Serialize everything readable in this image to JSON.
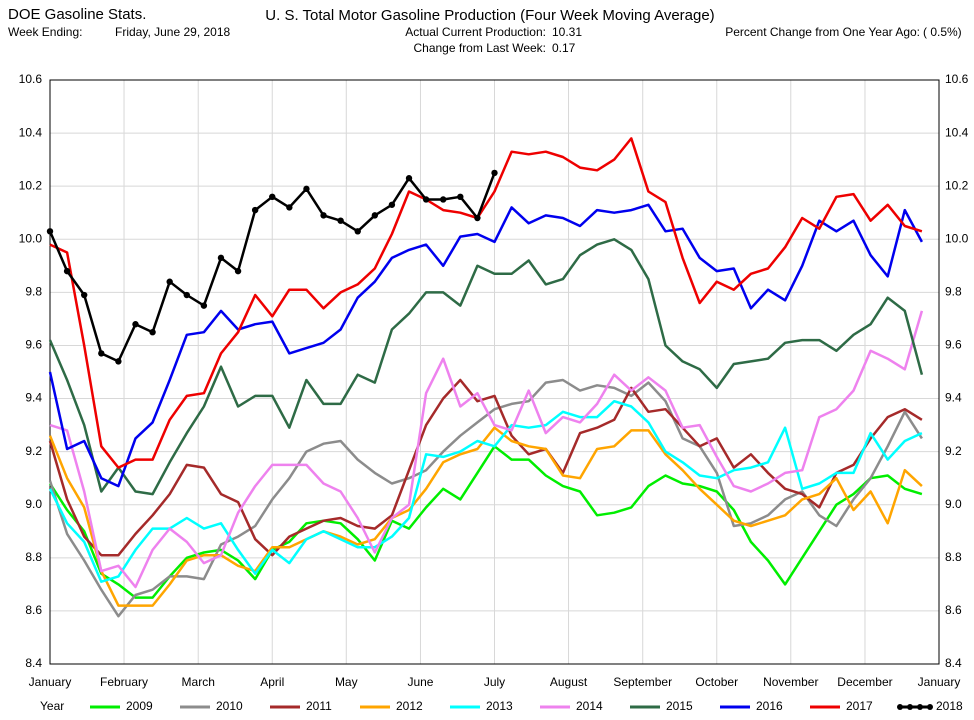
{
  "header": {
    "source": "DOE Gasoline Stats.",
    "week_label": "Week Ending:",
    "week_value": "Friday, June 29, 2018",
    "current_label": "Actual Current Production:",
    "current_value": "10.31",
    "change_label": "Change from Last Week:",
    "change_value": "0.17",
    "pct_label": "Percent Change from One Year Ago:",
    "pct_value": "( 0.5%)"
  },
  "chart_data": {
    "type": "line",
    "title": "U. S. Total Motor Gasoline Production (Four Week Moving Average)",
    "legend_title": "Year",
    "grid": true,
    "legend": "bottom",
    "x": [
      0,
      1,
      2,
      3,
      4,
      5,
      6,
      7,
      8,
      9,
      10,
      11,
      12,
      13,
      14,
      15,
      16,
      17,
      18,
      19,
      20,
      21,
      22,
      23,
      24,
      25,
      26,
      27,
      28,
      29,
      30,
      31,
      32,
      33,
      34,
      35,
      36,
      37,
      38,
      39,
      40,
      41,
      42,
      43,
      44,
      45,
      46,
      47,
      48,
      49,
      50,
      51
    ],
    "xlim": [
      0,
      52
    ],
    "xticks": [
      {
        "value": 0,
        "label": "January"
      },
      {
        "value": 4.33,
        "label": "February"
      },
      {
        "value": 8.67,
        "label": "March"
      },
      {
        "value": 13,
        "label": "April"
      },
      {
        "value": 17.33,
        "label": "May"
      },
      {
        "value": 21.67,
        "label": "June"
      },
      {
        "value": 26,
        "label": "July"
      },
      {
        "value": 30.33,
        "label": "August"
      },
      {
        "value": 34.67,
        "label": "September"
      },
      {
        "value": 39,
        "label": "October"
      },
      {
        "value": 43.33,
        "label": "November"
      },
      {
        "value": 47.67,
        "label": "December"
      },
      {
        "value": 52,
        "label": "January"
      }
    ],
    "ylim": [
      8.4,
      10.6
    ],
    "yticks": [
      8.4,
      8.6,
      8.8,
      {
        "value": 9.0,
        "label": "9.0"
      },
      9.2,
      9.4,
      9.6,
      9.8,
      {
        "value": 10.0,
        "label": "10.0"
      },
      10.2,
      10.4,
      10.6
    ],
    "series": [
      {
        "name": "2009",
        "color": "#00ee00",
        "values": [
          9.08,
          8.98,
          8.9,
          8.74,
          8.7,
          8.65,
          8.65,
          8.73,
          8.8,
          8.82,
          8.83,
          8.79,
          8.72,
          8.83,
          8.86,
          8.93,
          8.94,
          8.93,
          8.87,
          8.79,
          8.94,
          8.91,
          8.99,
          9.06,
          9.02,
          9.12,
          9.22,
          9.17,
          9.17,
          9.11,
          9.07,
          9.05,
          8.96,
          8.97,
          8.99,
          9.07,
          9.11,
          9.08,
          9.07,
          9.05,
          8.98,
          8.86,
          8.79,
          8.7,
          8.8,
          8.9,
          9.0,
          9.04,
          9.1,
          9.11,
          9.06,
          9.04
        ]
      },
      {
        "name": "2010",
        "color": "#8c8c8c",
        "values": [
          9.09,
          8.89,
          8.79,
          8.68,
          8.58,
          8.66,
          8.68,
          8.73,
          8.73,
          8.72,
          8.85,
          8.88,
          8.92,
          9.02,
          9.1,
          9.2,
          9.23,
          9.24,
          9.17,
          9.12,
          9.08,
          9.1,
          9.13,
          9.2,
          9.26,
          9.31,
          9.36,
          9.38,
          9.39,
          9.46,
          9.47,
          9.43,
          9.45,
          9.44,
          9.41,
          9.46,
          9.39,
          9.25,
          9.22,
          9.12,
          8.92,
          8.93,
          8.96,
          9.02,
          9.05,
          8.96,
          8.92,
          9.02,
          9.1,
          9.22,
          9.35,
          9.25
        ]
      },
      {
        "name": "2011",
        "color": "#a52a2a",
        "values": [
          9.24,
          9.02,
          8.88,
          8.81,
          8.81,
          8.89,
          8.96,
          9.04,
          9.15,
          9.14,
          9.04,
          9.01,
          8.87,
          8.81,
          8.88,
          8.91,
          8.94,
          8.95,
          8.92,
          8.91,
          8.96,
          9.13,
          9.3,
          9.4,
          9.47,
          9.39,
          9.41,
          9.26,
          9.19,
          9.21,
          9.12,
          9.27,
          9.29,
          9.32,
          9.44,
          9.35,
          9.36,
          9.29,
          9.22,
          9.25,
          9.14,
          9.19,
          9.12,
          9.06,
          9.04,
          8.99,
          9.12,
          9.15,
          9.25,
          9.33,
          9.36,
          9.32
        ]
      },
      {
        "name": "2012",
        "color": "#ffa500",
        "values": [
          9.26,
          9.1,
          8.99,
          8.75,
          8.62,
          8.62,
          8.62,
          8.7,
          8.79,
          8.81,
          8.81,
          8.77,
          8.75,
          8.84,
          8.84,
          8.87,
          8.9,
          8.88,
          8.85,
          8.87,
          8.95,
          8.98,
          9.06,
          9.16,
          9.19,
          9.21,
          9.29,
          9.24,
          9.22,
          9.21,
          9.11,
          9.1,
          9.21,
          9.22,
          9.28,
          9.28,
          9.19,
          9.13,
          9.06,
          9.0,
          8.94,
          8.92,
          8.94,
          8.96,
          9.02,
          9.04,
          9.1,
          8.98,
          9.05,
          8.93,
          9.13,
          9.07
        ]
      },
      {
        "name": "2013",
        "color": "#00ffff",
        "values": [
          9.06,
          8.93,
          8.86,
          8.71,
          8.73,
          8.83,
          8.91,
          8.91,
          8.95,
          8.91,
          8.93,
          8.83,
          8.74,
          8.83,
          8.78,
          8.87,
          8.9,
          8.87,
          8.84,
          8.84,
          8.88,
          8.95,
          9.19,
          9.18,
          9.2,
          9.24,
          9.22,
          9.3,
          9.29,
          9.3,
          9.35,
          9.33,
          9.33,
          9.39,
          9.37,
          9.31,
          9.2,
          9.16,
          9.11,
          9.1,
          9.13,
          9.14,
          9.16,
          9.29,
          9.06,
          9.08,
          9.12,
          9.12,
          9.27,
          9.17,
          9.24,
          9.27
        ]
      },
      {
        "name": "2014",
        "color": "#ee82ee",
        "values": [
          9.3,
          9.28,
          9.05,
          8.75,
          8.77,
          8.69,
          8.83,
          8.91,
          8.86,
          8.78,
          8.81,
          8.97,
          9.07,
          9.15,
          9.15,
          9.15,
          9.08,
          9.05,
          8.95,
          8.82,
          8.95,
          9.0,
          9.42,
          9.55,
          9.37,
          9.42,
          9.3,
          9.28,
          9.43,
          9.27,
          9.33,
          9.31,
          9.38,
          9.49,
          9.43,
          9.48,
          9.43,
          9.29,
          9.3,
          9.18,
          9.07,
          9.05,
          9.08,
          9.12,
          9.13,
          9.33,
          9.36,
          9.43,
          9.58,
          9.55,
          9.51,
          9.73
        ]
      },
      {
        "name": "2015",
        "color": "#2e6b46",
        "values": [
          9.62,
          9.47,
          9.3,
          9.05,
          9.14,
          9.05,
          9.04,
          9.16,
          9.27,
          9.37,
          9.52,
          9.37,
          9.41,
          9.41,
          9.29,
          9.47,
          9.38,
          9.38,
          9.49,
          9.46,
          9.66,
          9.72,
          9.8,
          9.8,
          9.75,
          9.9,
          9.87,
          9.87,
          9.92,
          9.83,
          9.85,
          9.94,
          9.98,
          10.0,
          9.96,
          9.85,
          9.6,
          9.54,
          9.51,
          9.44,
          9.53,
          9.54,
          9.55,
          9.61,
          9.62,
          9.62,
          9.58,
          9.64,
          9.68,
          9.78,
          9.73,
          9.49
        ]
      },
      {
        "name": "2016",
        "color": "#0000ee",
        "values": [
          9.5,
          9.21,
          9.24,
          9.1,
          9.07,
          9.25,
          9.31,
          9.47,
          9.64,
          9.65,
          9.73,
          9.66,
          9.68,
          9.69,
          9.57,
          9.59,
          9.61,
          9.66,
          9.78,
          9.84,
          9.93,
          9.96,
          9.98,
          9.9,
          10.01,
          10.02,
          9.99,
          10.12,
          10.06,
          10.09,
          10.08,
          10.05,
          10.11,
          10.1,
          10.11,
          10.13,
          10.03,
          10.04,
          9.93,
          9.88,
          9.89,
          9.74,
          9.81,
          9.77,
          9.9,
          10.07,
          10.03,
          10.07,
          9.94,
          9.86,
          10.11,
          9.99
        ]
      },
      {
        "name": "2017",
        "color": "#ee0000",
        "values": [
          9.98,
          9.95,
          9.6,
          9.22,
          9.14,
          9.17,
          9.17,
          9.32,
          9.41,
          9.42,
          9.57,
          9.65,
          9.79,
          9.71,
          9.81,
          9.81,
          9.74,
          9.8,
          9.83,
          9.89,
          10.02,
          10.18,
          10.15,
          10.11,
          10.1,
          10.08,
          10.18,
          10.33,
          10.32,
          10.33,
          10.31,
          10.27,
          10.26,
          10.3,
          10.38,
          10.18,
          10.14,
          9.93,
          9.76,
          9.84,
          9.81,
          9.87,
          9.89,
          9.97,
          10.08,
          10.04,
          10.16,
          10.17,
          10.07,
          10.13,
          10.05,
          10.03
        ]
      },
      {
        "name": "2018",
        "color": "#000000",
        "marker": "o",
        "values": [
          10.03,
          9.88,
          9.79,
          9.57,
          9.54,
          9.68,
          9.65,
          9.84,
          9.79,
          9.75,
          9.93,
          9.88,
          10.11,
          10.16,
          10.12,
          10.19,
          10.09,
          10.07,
          10.03,
          10.09,
          10.13,
          10.23,
          10.15,
          10.15,
          10.16,
          10.08,
          10.25,
          null,
          null,
          null,
          null,
          null,
          null,
          null,
          null,
          null,
          null,
          null,
          null,
          null,
          null,
          null,
          null,
          null,
          null,
          null,
          null,
          null,
          null,
          null,
          null,
          null
        ]
      }
    ]
  }
}
